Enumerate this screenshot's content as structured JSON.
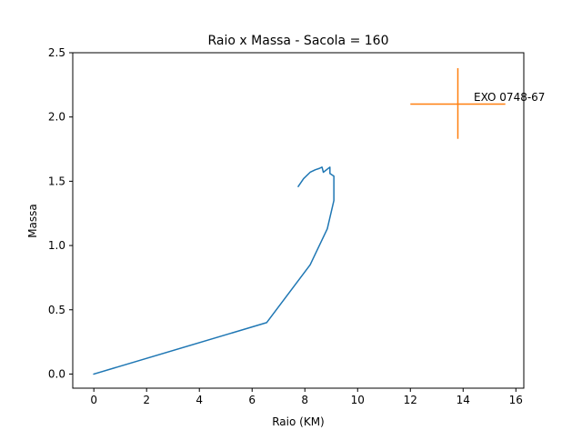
{
  "chart_data": {
    "type": "line",
    "title": "Raio x Massa - Sacola = 160",
    "xlabel": "Raio (KM)",
    "ylabel": "Massa",
    "xlim": [
      -0.8,
      16.3
    ],
    "ylim": [
      -0.11,
      2.5
    ],
    "grid": false,
    "xticks": [
      0,
      2,
      4,
      6,
      8,
      10,
      12,
      14,
      16
    ],
    "yticks": [
      0.0,
      0.5,
      1.0,
      1.5,
      2.0,
      2.5
    ],
    "xtick_labels": [
      "0",
      "2",
      "4",
      "6",
      "8",
      "10",
      "12",
      "14",
      "16"
    ],
    "ytick_labels": [
      "0.0",
      "0.5",
      "1.0",
      "1.5",
      "2.0",
      "2.5"
    ],
    "series": [
      {
        "color": "#1f77b4",
        "x": [
          0.0,
          6.55,
          8.2,
          8.85,
          9.1,
          9.1,
          9.1,
          8.95,
          8.95,
          8.7,
          8.65,
          8.55,
          8.4,
          8.2,
          7.95,
          7.75
        ],
        "y": [
          0.0,
          0.4,
          0.85,
          1.13,
          1.35,
          1.52,
          1.54,
          1.56,
          1.61,
          1.57,
          1.61,
          1.6,
          1.59,
          1.57,
          1.52,
          1.46
        ]
      }
    ],
    "error_point": {
      "label": "EXO 0748-67",
      "x": 13.8,
      "y": 2.1,
      "xerr": [
        12.0,
        15.6
      ],
      "yerr": [
        1.83,
        2.38
      ],
      "color": "#ff7f0e"
    }
  }
}
